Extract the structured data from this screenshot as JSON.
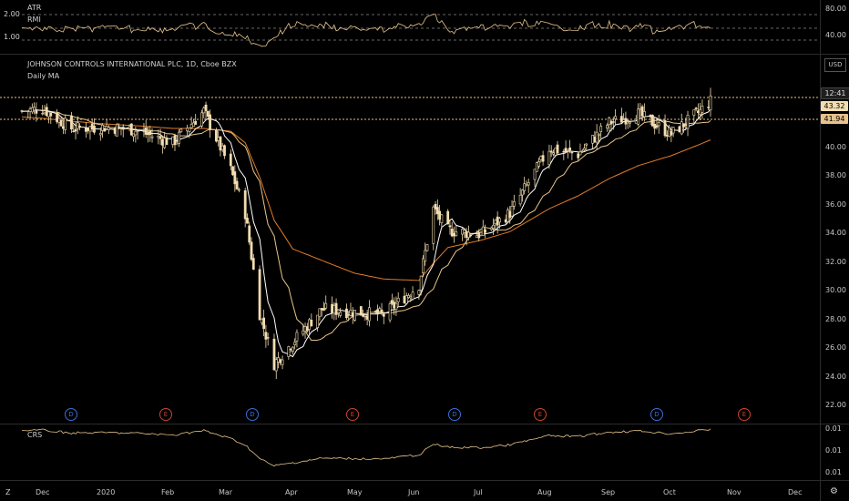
{
  "header": {
    "symbol_title": "JOHNSON CONTROLS INTERNATIONAL PLC, 1D, Cboe BZX",
    "study_title": "Daily MA",
    "currency": "USD"
  },
  "top_pane": {
    "labels": [
      "ATR",
      "RMI"
    ],
    "left_ticks": [
      "2.00",
      "1.00"
    ],
    "right_ticks": [
      "80.00",
      "40.00"
    ]
  },
  "bottom_pane": {
    "label": "CRS",
    "right_ticks": [
      "0.01",
      "0.01",
      "0.01"
    ]
  },
  "price_axis": {
    "ticks": [
      "40.00",
      "38.00",
      "36.00",
      "34.00",
      "32.00",
      "30.00",
      "28.00",
      "26.00",
      "24.00",
      "22.00"
    ],
    "badges": [
      {
        "text": "12:41",
        "style": "countdown"
      },
      {
        "text": "43.32",
        "style": "price"
      },
      {
        "text": "41.94",
        "style": "level"
      }
    ]
  },
  "time_axis": {
    "ticks": [
      "Dec",
      "2020",
      "Feb",
      "Mar",
      "Apr",
      "May",
      "Jun",
      "Jul",
      "Aug",
      "Sep",
      "Oct",
      "Nov",
      "Dec"
    ]
  },
  "events": [
    "D",
    "E",
    "D",
    "E",
    "D",
    "E",
    "D",
    "E"
  ],
  "colors": {
    "candle": "#f3ddb0",
    "ma_fast": "#ffffff",
    "ma_mid": "#e8c58a",
    "ma_slow": "#e07b28",
    "dividend": "#3b6fd6",
    "earnings": "#c8452f",
    "dotted": "#e8c28b"
  },
  "corner": {
    "left": "Z",
    "right": "⚙"
  },
  "chart_data": {
    "type": "candlestick",
    "x": [
      "2019-11-22",
      "2019-12-02",
      "2019-12-16",
      "2020-01-02",
      "2020-01-15",
      "2020-02-03",
      "2020-02-18",
      "2020-03-02",
      "2020-03-09",
      "2020-03-16",
      "2020-03-23",
      "2020-04-01",
      "2020-04-15",
      "2020-05-01",
      "2020-05-15",
      "2020-06-01",
      "2020-06-08",
      "2020-06-15",
      "2020-07-01",
      "2020-07-15",
      "2020-08-03",
      "2020-08-17",
      "2020-09-01",
      "2020-09-15",
      "2020-10-01",
      "2020-10-15",
      "2020-10-20"
    ],
    "close": [
      42.6,
      42.8,
      41.4,
      41.5,
      41.3,
      40.4,
      42.6,
      38.5,
      35.5,
      28.5,
      25.0,
      26.5,
      28.8,
      28.6,
      28.4,
      30.5,
      35.8,
      34.3,
      34.0,
      35.5,
      40.0,
      39.6,
      41.8,
      42.4,
      41.0,
      42.6,
      43.3
    ],
    "ma_slow": [
      42.2,
      42.1,
      41.9,
      41.7,
      41.6,
      41.4,
      41.4,
      41.2,
      40.4,
      38.0,
      35.0,
      33.0,
      32.2,
      31.3,
      30.9,
      30.8,
      32.0,
      33.1,
      33.6,
      34.2,
      35.8,
      36.7,
      37.9,
      38.8,
      39.5,
      40.3,
      40.6
    ],
    "yrange": [
      22,
      44
    ]
  }
}
